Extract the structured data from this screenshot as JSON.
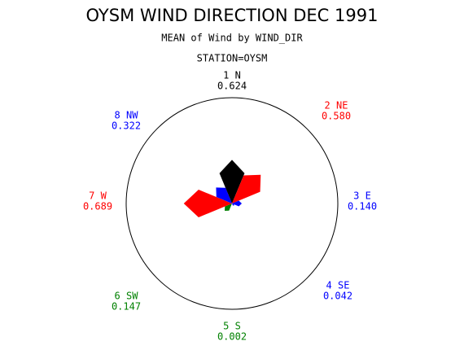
{
  "chart_data": {
    "type": "star",
    "title": "OYSM WIND DIRECTION DEC 1991",
    "subtitle": "MEAN of Wind by WIND_DIR",
    "group_label": "STATION=OYSM",
    "categories": [
      "1 N",
      "2 NE",
      "3 E",
      "4 SE",
      "5 S",
      "6 SW",
      "7 W",
      "8 NW"
    ],
    "values": [
      0.624,
      0.58,
      0.14,
      0.042,
      0.002,
      0.147,
      0.689,
      0.322
    ],
    "value_labels": [
      "0.624",
      "0.580",
      "0.140",
      "0.042",
      "0.002",
      "0.147",
      "0.689",
      "0.322"
    ],
    "colors": [
      "#000000",
      "#ff0000",
      "#0000ff",
      "#0000ff",
      "#008000",
      "#008000",
      "#ff0000",
      "#0000ff"
    ]
  }
}
